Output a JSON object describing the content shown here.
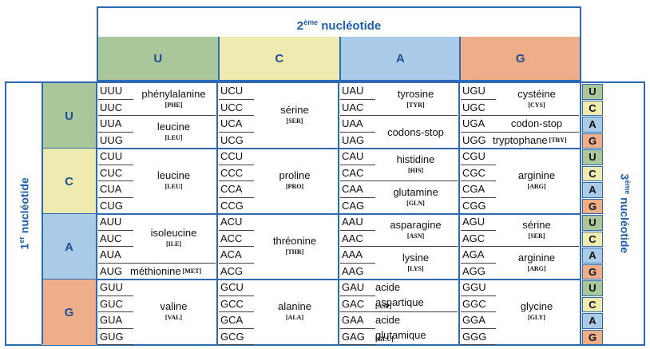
{
  "header": {
    "second_main": "2",
    "second_sup": "ème",
    "second_rest": " nucléotide",
    "first_main": "1",
    "first_sup": "er",
    "first_rest": " nucléotide",
    "third_main": "3",
    "third_sup": "ème",
    "third_rest": " nucléotide"
  },
  "colors": {
    "U": "#a9c79a",
    "C": "#eeeab0",
    "A": "#a9cbe8",
    "G": "#eeae8a",
    "border": "#2f69b3"
  },
  "columns": [
    "U",
    "C",
    "A",
    "G"
  ],
  "rows": [
    "U",
    "C",
    "A",
    "G"
  ],
  "third_letters": [
    "U",
    "C",
    "A",
    "G"
  ],
  "blocks": [
    [
      {
        "codons": [
          "UUU",
          "UUC",
          "UUA",
          "UUG"
        ],
        "groups": [
          {
            "rows": [
              0,
              1
            ],
            "name": "phénylalanine",
            "abbr": "[PHE]"
          },
          {
            "rows": [
              2,
              3
            ],
            "name": "leucine",
            "abbr": "[LEU]"
          }
        ]
      },
      {
        "codons": [
          "UCU",
          "UCC",
          "UCA",
          "UCG"
        ],
        "groups": [
          {
            "rows": [
              0,
              3
            ],
            "name": "sérine",
            "abbr": "[SER]"
          }
        ]
      },
      {
        "codons": [
          "UAU",
          "UAC",
          "UAA",
          "UAG"
        ],
        "groups": [
          {
            "rows": [
              0,
              1
            ],
            "name": "tyrosine",
            "abbr": "[TYR]"
          },
          {
            "rows": [
              2,
              3
            ],
            "name": "codons-stop",
            "abbr": ""
          }
        ]
      },
      {
        "codons": [
          "UGU",
          "UGC",
          "UGA",
          "UGG"
        ],
        "groups": [
          {
            "rows": [
              0,
              1
            ],
            "name": "cystéine",
            "abbr": "[CYS]"
          },
          {
            "rows": [
              2,
              2
            ],
            "name": "codon-stop",
            "abbr": ""
          },
          {
            "rows": [
              3,
              3
            ],
            "name": "tryptophane",
            "abbr": "[TRY]",
            "inline": true
          }
        ]
      }
    ],
    [
      {
        "codons": [
          "CUU",
          "CUC",
          "CUA",
          "CUG"
        ],
        "groups": [
          {
            "rows": [
              0,
              3
            ],
            "name": "leucine",
            "abbr": "[LEU]"
          }
        ]
      },
      {
        "codons": [
          "CCU",
          "CCC",
          "CCA",
          "CCG"
        ],
        "groups": [
          {
            "rows": [
              0,
              3
            ],
            "name": "proline",
            "abbr": "[PRO]"
          }
        ]
      },
      {
        "codons": [
          "CAU",
          "CAC",
          "CAA",
          "CAG"
        ],
        "groups": [
          {
            "rows": [
              0,
              1
            ],
            "name": "histidine",
            "abbr": "[HIS]"
          },
          {
            "rows": [
              2,
              3
            ],
            "name": "glutamine",
            "abbr": "[GLN]"
          }
        ]
      },
      {
        "codons": [
          "CGU",
          "CGC",
          "CGA",
          "CGG"
        ],
        "groups": [
          {
            "rows": [
              0,
              3
            ],
            "name": "arginine",
            "abbr": "[ARG]"
          }
        ]
      }
    ],
    [
      {
        "codons": [
          "AUU",
          "AUC",
          "AUA",
          "AUG"
        ],
        "groups": [
          {
            "rows": [
              0,
              2
            ],
            "name": "isoleucine",
            "abbr": "[ILE]"
          },
          {
            "rows": [
              3,
              3
            ],
            "name": "méthionine",
            "abbr": "[MET]",
            "inline": true
          }
        ]
      },
      {
        "codons": [
          "ACU",
          "ACC",
          "ACA",
          "ACG"
        ],
        "groups": [
          {
            "rows": [
              0,
              3
            ],
            "name": "thréonine",
            "abbr": "[THR]"
          }
        ]
      },
      {
        "codons": [
          "AAU",
          "AAC",
          "AAA",
          "AAG"
        ],
        "groups": [
          {
            "rows": [
              0,
              1
            ],
            "name": "asparagine",
            "abbr": "[ASN]"
          },
          {
            "rows": [
              2,
              3
            ],
            "name": "lysine",
            "abbr": "[LYS]"
          }
        ]
      },
      {
        "codons": [
          "AGU",
          "AGC",
          "AGA",
          "AGG"
        ],
        "groups": [
          {
            "rows": [
              0,
              1
            ],
            "name": "sérine",
            "abbr": "[SER]"
          },
          {
            "rows": [
              2,
              3
            ],
            "name": "arginine",
            "abbr": "[ARG]"
          }
        ]
      }
    ],
    [
      {
        "codons": [
          "GUU",
          "GUC",
          "GUA",
          "GUG"
        ],
        "groups": [
          {
            "rows": [
              0,
              3
            ],
            "name": "valine",
            "abbr": "[VAL]"
          }
        ]
      },
      {
        "codons": [
          "GCU",
          "GCC",
          "GCA",
          "GCG"
        ],
        "groups": [
          {
            "rows": [
              0,
              3
            ],
            "name": "alanine",
            "abbr": "[ALA]"
          }
        ]
      },
      {
        "codons": [
          "GAU",
          "GAC",
          "GAA",
          "GAG"
        ],
        "groups": [
          {
            "rows": [
              0,
              1
            ],
            "name": "acide aspartique",
            "abbr": "[ASP]",
            "split": true
          },
          {
            "rows": [
              2,
              3
            ],
            "name": "acide glutamique",
            "abbr": "[GLU]",
            "split": true
          }
        ]
      },
      {
        "codons": [
          "GGU",
          "GGC",
          "GGA",
          "GGG"
        ],
        "groups": [
          {
            "rows": [
              0,
              3
            ],
            "name": "glycine",
            "abbr": "[GLY]"
          }
        ]
      }
    ]
  ]
}
